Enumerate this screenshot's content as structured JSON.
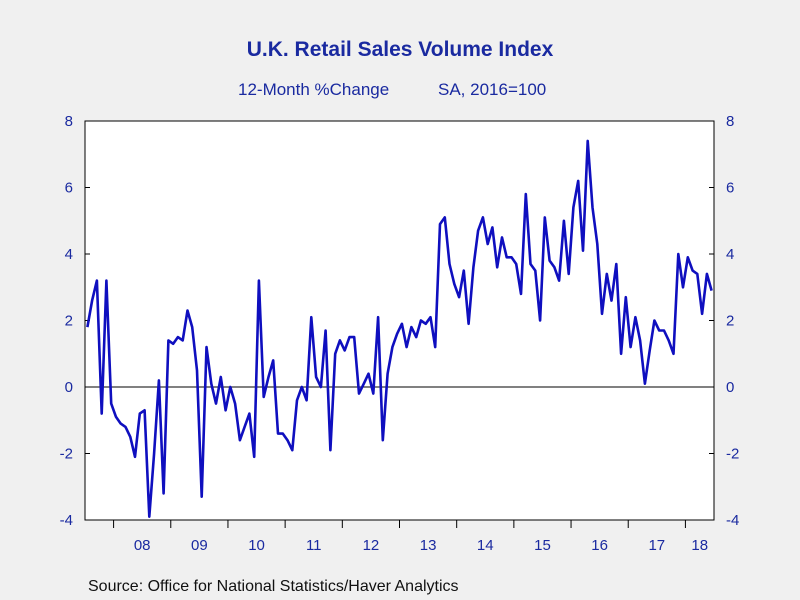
{
  "chart_data": {
    "type": "line",
    "title": "U.K. Retail Sales Volume Index",
    "subtitle_left": "12-Month %Change",
    "subtitle_right": "SA, 2016=100",
    "source": "Source:  Office for National Statistics/Haver Analytics",
    "xlabel": "",
    "ylabel": "",
    "ylim": [
      -4,
      8
    ],
    "yticks": [
      -4,
      -2,
      0,
      2,
      4,
      6,
      8
    ],
    "x_start": "2007-07",
    "year_labels": [
      "08",
      "09",
      "10",
      "11",
      "12",
      "13",
      "14",
      "15",
      "16",
      "17",
      "18"
    ],
    "grid": false,
    "zero_line": true,
    "colors": {
      "line": "#0f0fbf",
      "text": "#1a2aa0",
      "plot_bg": "#ffffff",
      "page_bg": "#f0f0f0"
    },
    "series": [
      {
        "values": [
          1.8,
          2.6,
          3.2,
          -0.8,
          3.2,
          -0.5,
          -0.9,
          -1.1,
          -1.2,
          -1.5,
          -2.1,
          -0.8,
          -0.7,
          -3.9,
          -2.0,
          0.2,
          -3.2,
          1.4,
          1.3,
          1.5,
          1.4,
          2.3,
          1.8,
          0.5,
          -3.3,
          1.2,
          0.1,
          -0.5,
          0.3,
          -0.7,
          0.0,
          -0.5,
          -1.6,
          -1.2,
          -0.8,
          -2.1,
          3.2,
          -0.3,
          0.3,
          0.8,
          -1.4,
          -1.4,
          -1.6,
          -1.9,
          -0.4,
          0.0,
          -0.4,
          2.1,
          0.3,
          0.0,
          1.7,
          -1.9,
          1.0,
          1.4,
          1.1,
          1.5,
          1.5,
          -0.2,
          0.1,
          0.4,
          -0.2,
          2.1,
          -1.6,
          0.4,
          1.2,
          1.6,
          1.9,
          1.2,
          1.8,
          1.5,
          2.0,
          1.9,
          2.1,
          1.2,
          4.9,
          5.1,
          3.7,
          3.1,
          2.7,
          3.5,
          1.9,
          3.6,
          4.7,
          5.1,
          4.3,
          4.8,
          3.6,
          4.5,
          3.9,
          3.9,
          3.7,
          2.8,
          5.8,
          3.7,
          3.5,
          2.0,
          5.1,
          3.8,
          3.6,
          3.2,
          5.0,
          3.4,
          5.4,
          6.2,
          4.1,
          7.4,
          5.4,
          4.3,
          2.2,
          3.4,
          2.6,
          3.7,
          1.0,
          2.7,
          1.2,
          2.1,
          1.4,
          0.1,
          1.1,
          2.0,
          1.7,
          1.7,
          1.4,
          1.0,
          4.0,
          3.0,
          3.9,
          3.5,
          3.4,
          2.2,
          3.4,
          2.9
        ]
      }
    ]
  }
}
